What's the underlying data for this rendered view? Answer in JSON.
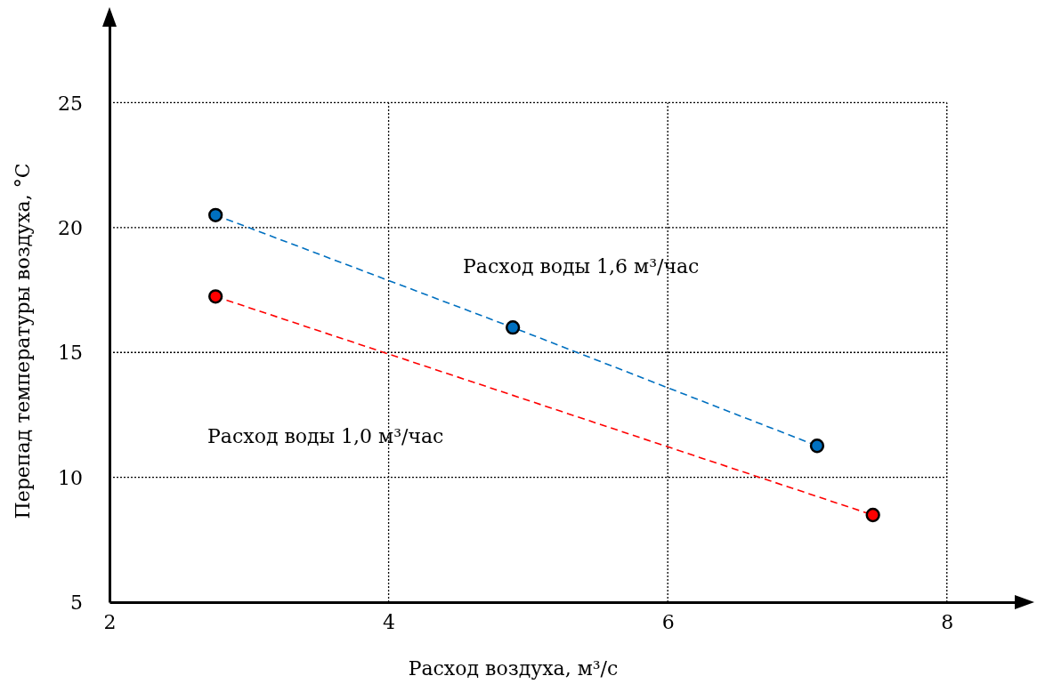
{
  "chart_data": {
    "type": "line",
    "xlabel": "Расход воздуха, м³/с",
    "ylabel": "Перепад температуры воздуха, °C",
    "xlim": [
      2,
      8.55
    ],
    "ylim": [
      5,
      28.4
    ],
    "xticks": [
      2,
      4,
      6,
      8
    ],
    "yticks": [
      5,
      10,
      15,
      20,
      25
    ],
    "grid": true,
    "marker": "circle",
    "line_style": "dashed",
    "series": [
      {
        "name": "Расход воды 1,6 м³/час",
        "color": "#0070c0",
        "x": [
          2.76,
          4.89,
          7.07
        ],
        "values": [
          20.5,
          16.0,
          11.26
        ]
      },
      {
        "name": "Расход воды 1,0 м³/час",
        "color": "#ff0000",
        "x": [
          2.76,
          7.47
        ],
        "values": [
          17.24,
          8.49
        ]
      }
    ]
  }
}
